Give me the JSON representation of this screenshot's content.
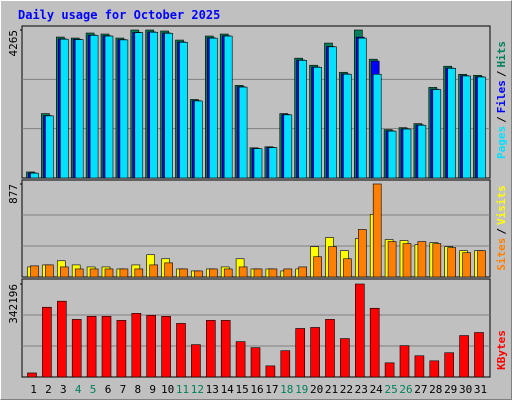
{
  "chart_data": {
    "type": "bar",
    "title": "Daily usage for October 2025",
    "legend_separator": "/",
    "categories": [
      "1",
      "2",
      "3",
      "4",
      "5",
      "6",
      "7",
      "8",
      "9",
      "10",
      "11",
      "12",
      "13",
      "14",
      "15",
      "16",
      "17",
      "18",
      "19",
      "20",
      "21",
      "22",
      "23",
      "24",
      "25",
      "26",
      "27",
      "28",
      "29",
      "30",
      "31"
    ],
    "category_colors": [
      "#000000",
      "#000000",
      "#000000",
      "#00805c",
      "#00805c",
      "#000000",
      "#000000",
      "#000000",
      "#000000",
      "#000000",
      "#00805c",
      "#00805c",
      "#000000",
      "#000000",
      "#000000",
      "#000000",
      "#000000",
      "#00805c",
      "#00805c",
      "#000000",
      "#000000",
      "#000000",
      "#000000",
      "#000000",
      "#00805c",
      "#00805c",
      "#000000",
      "#000000",
      "#000000",
      "#000000",
      "#000000"
    ],
    "panels": [
      {
        "ylim": [
          0,
          4265
        ],
        "yticks": [
          4265
        ],
        "series": [
          {
            "name": "Hits",
            "color": "#00805c",
            "values": [
              174,
              1857,
              4062,
              4033,
              4178,
              4149,
              4033,
              4265,
              4265,
              4236,
              3975,
              2263,
              4091,
              4149,
              2669,
              870,
              899,
              1857,
              3453,
              3250,
              3888,
              3047,
              4265,
              3424,
              1393,
              1451,
              1567,
              2611,
              3221,
              2989,
              2960
            ]
          },
          {
            "name": "Files",
            "color": "#0000ff",
            "values": [
              145,
              1800,
              4010,
              4000,
              4120,
              4100,
              3990,
              4200,
              4210,
              4180,
              3920,
              2230,
              4040,
              4100,
              2630,
              850,
              880,
              1830,
              3400,
              3200,
              3790,
              3000,
              4060,
              3370,
              1360,
              1420,
              1530,
              2560,
              3170,
              2950,
              2920
            ]
          },
          {
            "name": "Pages",
            "color": "#00e0ff",
            "values": [
              140,
              1790,
              4000,
              3990,
              4110,
              4090,
              3980,
              4190,
              4200,
              4170,
              3910,
              2220,
              4030,
              4090,
              2620,
              845,
              875,
              1820,
              3390,
              3190,
              3780,
              2990,
              4030,
              2990,
              1350,
              1410,
              1520,
              2550,
              3160,
              2940,
              2910
            ]
          }
        ]
      },
      {
        "ylim": [
          0,
          877
        ],
        "yticks": [
          877
        ],
        "series": [
          {
            "name": "Visits",
            "color": "#ffff00",
            "values": [
              95,
              114,
              153,
              114,
              95,
              95,
              76,
              114,
              210,
              172,
              76,
              57,
              76,
              95,
              172,
              76,
              76,
              57,
              76,
              286,
              372,
              248,
              362,
              591,
              353,
              343,
              305,
              324,
              286,
              248,
              248
            ]
          },
          {
            "name": "Sites",
            "color": "#ff8000",
            "values": [
              105,
              114,
              95,
              76,
              76,
              76,
              76,
              76,
              114,
              133,
              76,
              57,
              76,
              76,
              95,
              76,
              76,
              76,
              95,
              191,
              286,
              172,
              448,
              877,
              334,
              315,
              334,
              315,
              277,
              229,
              248
            ]
          }
        ]
      },
      {
        "ylim": [
          0,
          342196
        ],
        "yticks": [
          342196
        ],
        "series": [
          {
            "name": "KBytes",
            "color": "#ff0000",
            "values": [
              14878,
              256647,
              278964,
              212013,
              223172,
              223172,
              208293,
              234330,
              226892,
              223172,
              197134,
              119024,
              208293,
              208293,
              130183,
              107865,
              40916,
              96706,
              178537,
              182257,
              212013,
              141341,
              342196,
              252928,
              52075,
              115304,
              78110,
              59512,
              89268,
              152502,
              163661
            ]
          }
        ]
      }
    ]
  }
}
